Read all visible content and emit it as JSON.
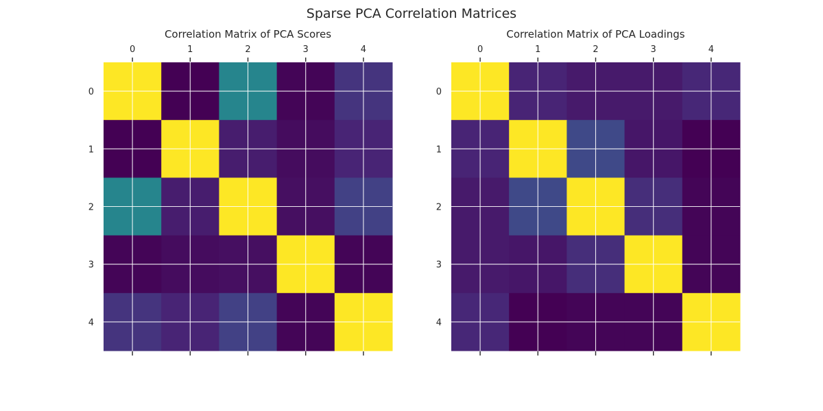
{
  "suptitle": "Sparse PCA Correlation Matrices",
  "colormap": "viridis",
  "chart_data": [
    {
      "type": "heatmap",
      "title": "Correlation Matrix of PCA Scores",
      "x_ticks": [
        "0",
        "1",
        "2",
        "3",
        "4"
      ],
      "y_ticks": [
        "0",
        "1",
        "2",
        "3",
        "4"
      ],
      "xlabel": "",
      "ylabel": "",
      "x_tick_position": "top",
      "grid": true,
      "color_range": [
        0,
        1
      ],
      "values": [
        [
          1.0,
          0.0,
          0.45,
          0.01,
          0.15
        ],
        [
          0.0,
          1.0,
          0.08,
          0.03,
          0.1
        ],
        [
          0.45,
          0.08,
          1.0,
          0.04,
          0.19
        ],
        [
          0.01,
          0.03,
          0.04,
          1.0,
          0.01
        ],
        [
          0.15,
          0.1,
          0.19,
          0.01,
          1.0
        ]
      ]
    },
    {
      "type": "heatmap",
      "title": "Correlation Matrix of PCA Loadings",
      "x_ticks": [
        "0",
        "1",
        "2",
        "3",
        "4"
      ],
      "y_ticks": [
        "0",
        "1",
        "2",
        "3",
        "4"
      ],
      "xlabel": "",
      "ylabel": "",
      "x_tick_position": "top",
      "grid": true,
      "color_range": [
        0,
        1
      ],
      "values": [
        [
          1.0,
          0.1,
          0.07,
          0.07,
          0.11
        ],
        [
          0.1,
          1.0,
          0.22,
          0.06,
          0.0
        ],
        [
          0.07,
          0.22,
          1.0,
          0.13,
          0.01
        ],
        [
          0.07,
          0.06,
          0.13,
          1.0,
          0.01
        ],
        [
          0.11,
          0.0,
          0.01,
          0.01,
          1.0
        ]
      ]
    }
  ]
}
